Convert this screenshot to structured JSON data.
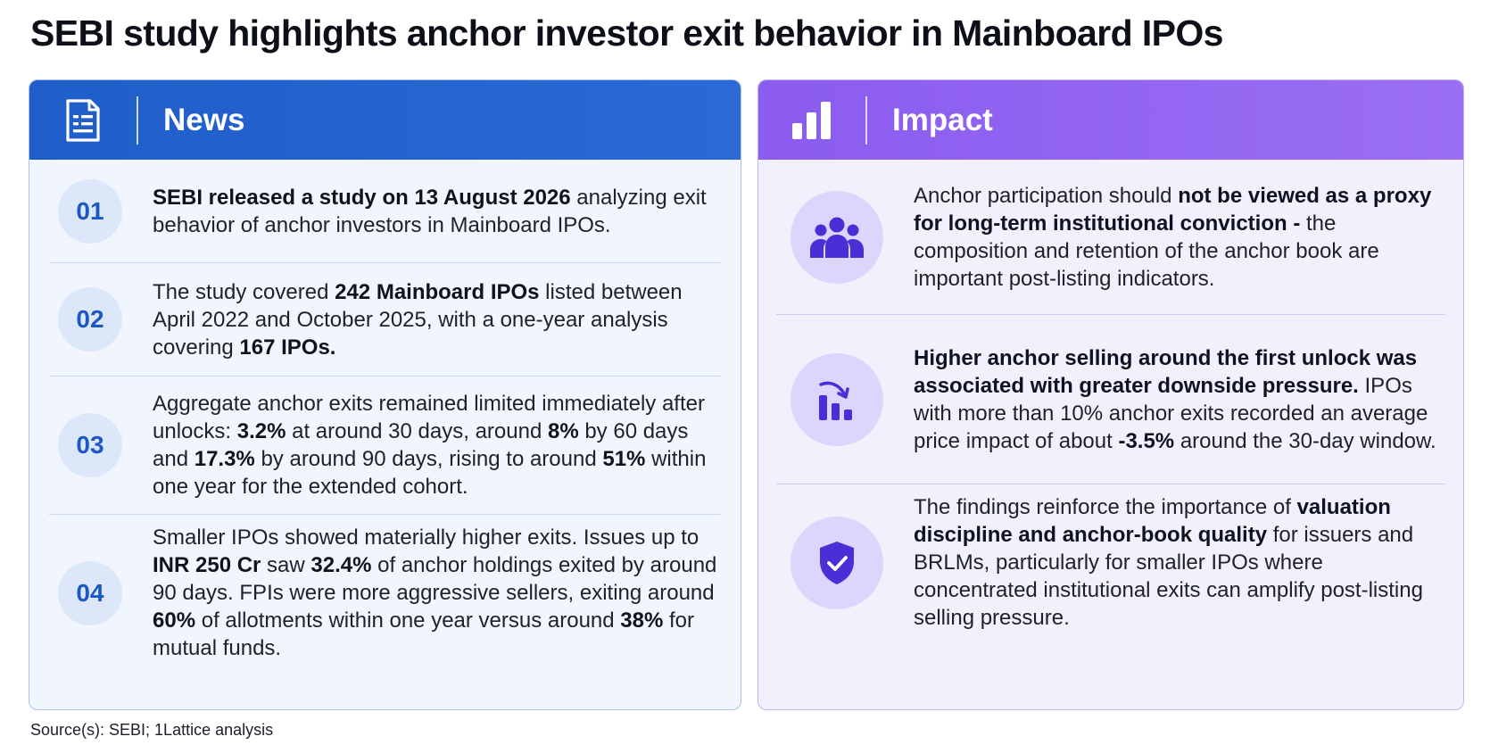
{
  "title": "SEBI study highlights anchor investor exit behavior in Mainboard IPOs",
  "news": {
    "heading": "News",
    "icon": "document-icon",
    "items": [
      {
        "num": "01",
        "parts": [
          {
            "t": "SEBI released a study on 13 August 2026",
            "b": true
          },
          {
            "t": " analyzing exit behavior of anchor investors in Mainboard IPOs.",
            "b": false
          }
        ]
      },
      {
        "num": "02",
        "parts": [
          {
            "t": "The study covered ",
            "b": false
          },
          {
            "t": "242 Mainboard IPOs",
            "b": true
          },
          {
            "t": " listed between April 2022 and October 2025, with a one-year analysis covering ",
            "b": false
          },
          {
            "t": "167 IPOs.",
            "b": true
          }
        ]
      },
      {
        "num": "03",
        "parts": [
          {
            "t": "Aggregate anchor exits remained limited immediately after unlocks: ",
            "b": false
          },
          {
            "t": "3.2%",
            "b": true
          },
          {
            "t": " at around 30 days, around ",
            "b": false
          },
          {
            "t": "8%",
            "b": true
          },
          {
            "t": " by 60 days and ",
            "b": false
          },
          {
            "t": "17.3%",
            "b": true
          },
          {
            "t": " by around 90 days, rising to around ",
            "b": false
          },
          {
            "t": "51%",
            "b": true
          },
          {
            "t": " within one year for the extended cohort.",
            "b": false
          }
        ]
      },
      {
        "num": "04",
        "parts": [
          {
            "t": "Smaller IPOs showed materially higher exits. Issues up to ",
            "b": false
          },
          {
            "t": "INR 250 Cr",
            "b": true
          },
          {
            "t": " saw ",
            "b": false
          },
          {
            "t": "32.4%",
            "b": true
          },
          {
            "t": " of anchor holdings exited by around 90 days. FPIs were more aggressive sellers, exiting around ",
            "b": false
          },
          {
            "t": "60%",
            "b": true
          },
          {
            "t": " of allotments within one year versus around ",
            "b": false
          },
          {
            "t": "38%",
            "b": true
          },
          {
            "t": " for mutual funds.",
            "b": false
          }
        ]
      }
    ]
  },
  "impact": {
    "heading": "Impact",
    "icon": "bar-chart-icon",
    "items": [
      {
        "icon": "people-group-icon",
        "parts": [
          {
            "t": "Anchor participation should ",
            "b": false
          },
          {
            "t": "not be viewed as a proxy for long-term institutional conviction -",
            "b": true
          },
          {
            "t": " the composition and retention of the anchor book are important post-listing indicators.",
            "b": false
          }
        ]
      },
      {
        "icon": "declining-chart-icon",
        "parts": [
          {
            "t": "Higher anchor selling around the first unlock was associated with greater downside pressure.",
            "b": true
          },
          {
            "t": " IPOs with more than 10% anchor exits recorded an average price impact of about ",
            "b": false
          },
          {
            "t": "-3.5%",
            "b": true
          },
          {
            "t": " around the 30-day window.",
            "b": false
          }
        ]
      },
      {
        "icon": "shield-check-icon",
        "parts": [
          {
            "t": "The findings reinforce the importance of ",
            "b": false
          },
          {
            "t": "valuation discipline and anchor-book quality",
            "b": true
          },
          {
            "t": " for issuers and BRLMs, particularly for smaller IPOs where concentrated institutional exits can amplify post-listing selling pressure.",
            "b": false
          }
        ]
      }
    ]
  },
  "source": "Source(s): SEBI; 1Lattice analysis"
}
